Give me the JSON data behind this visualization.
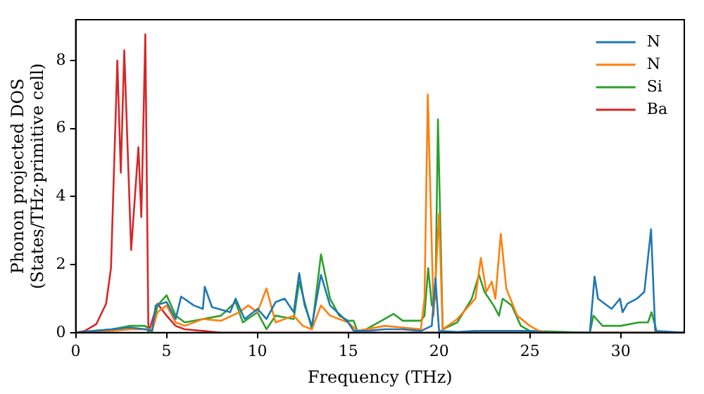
{
  "chart_data": {
    "type": "line",
    "xlabel": "Frequency (THz)",
    "ylabel": "Phonon projected DOS\n(States/THz·primitive cell)",
    "xlim": [
      0,
      33.5
    ],
    "xticks": [
      0,
      5,
      10,
      15,
      20,
      25,
      30
    ],
    "ylim": [
      0,
      9.2
    ],
    "yticks": [
      0,
      2,
      4,
      6,
      8
    ],
    "grid": false,
    "legend": "top right",
    "marker": "none",
    "line_style": "solid",
    "series": [
      {
        "name": "N",
        "color": "#1f77b4",
        "x": [
          0,
          1,
          2,
          3,
          3.8,
          4.2,
          4.4,
          5,
          5.5,
          5.8,
          6.5,
          7,
          7.1,
          7.5,
          8.5,
          8.8,
          9.3,
          10,
          10.5,
          11,
          11.5,
          12,
          12.3,
          12.6,
          13,
          13.5,
          14,
          15,
          15.3,
          16,
          17,
          18,
          19,
          19.6,
          19.8,
          20,
          21,
          22,
          25,
          26,
          28.3,
          28.56,
          28.75,
          29.5,
          29.96,
          30.1,
          30.37,
          30.9,
          31.3,
          31.67,
          31.9,
          33.5
        ],
        "values": [
          0,
          0.05,
          0.1,
          0.15,
          0.1,
          0.05,
          0.8,
          0.9,
          0.4,
          1.06,
          0.8,
          0.7,
          1.35,
          0.75,
          0.6,
          1,
          0.4,
          0.7,
          0.4,
          0.9,
          1,
          0.6,
          1.75,
          0.8,
          0.2,
          1.7,
          0.8,
          0.3,
          0.05,
          0.05,
          0.1,
          0.1,
          0.05,
          0.2,
          1.6,
          0.05,
          0.02,
          0.05,
          0.05,
          0,
          0,
          1.65,
          1,
          0.7,
          1,
          0.6,
          0.85,
          1,
          1.2,
          3.04,
          0.05,
          0
        ]
      },
      {
        "name": "N",
        "color": "#ff7f0e",
        "x": [
          0,
          2,
          3,
          4,
          4.2,
          4.5,
          5,
          5.5,
          6,
          7,
          8,
          9,
          9.5,
          10,
          10.5,
          11,
          12,
          12.5,
          13,
          13.5,
          14,
          15,
          15.5,
          17,
          19,
          19.2,
          19.38,
          19.7,
          20,
          20.2,
          21,
          22,
          22.3,
          22.6,
          22.9,
          23.1,
          23.4,
          23.7,
          24,
          24.3,
          25,
          25.5,
          26,
          33.5
        ],
        "values": [
          0,
          0.05,
          0.1,
          0.1,
          0.05,
          0.6,
          0.8,
          0.3,
          0.2,
          0.4,
          0.35,
          0.6,
          0.8,
          0.6,
          1.3,
          0.3,
          0.5,
          0.2,
          0.1,
          0.8,
          0.5,
          0.3,
          0.05,
          0.2,
          0.1,
          1,
          7,
          0.5,
          3.5,
          0.1,
          0.4,
          1,
          2.2,
          1.2,
          1.5,
          1,
          2.9,
          1.3,
          0.9,
          0.5,
          0.2,
          0.05,
          0,
          0
        ]
      },
      {
        "name": "Si",
        "color": "#2ca02c",
        "x": [
          0,
          1,
          2,
          3,
          3.8,
          4.2,
          4.5,
          5,
          5.5,
          6,
          7,
          8,
          8.8,
          9.2,
          10,
          10.5,
          11,
          12,
          12.3,
          12.6,
          13,
          13.5,
          14,
          14.5,
          15,
          15.3,
          15.5,
          16,
          17,
          17.5,
          18,
          19,
          19.2,
          19.4,
          19.6,
          19.8,
          19.94,
          20.2,
          21,
          21.8,
          22.2,
          22.5,
          23,
          23.3,
          23.5,
          24,
          24.5,
          25,
          28.3,
          28.5,
          29,
          30,
          31,
          31.5,
          31.7,
          32,
          33.5
        ],
        "values": [
          0,
          0.05,
          0.1,
          0.2,
          0.2,
          0.05,
          0.8,
          1.1,
          0.5,
          0.3,
          0.4,
          0.5,
          0.9,
          0.3,
          0.6,
          0.1,
          0.5,
          0.4,
          1.5,
          0.9,
          0.1,
          2.3,
          1,
          0.5,
          0.35,
          0.35,
          0.05,
          0.1,
          0.4,
          0.55,
          0.35,
          0.35,
          0.5,
          1.9,
          0.8,
          1,
          6.27,
          0.1,
          0.3,
          1,
          1.7,
          1.2,
          0.8,
          0.5,
          1,
          0.8,
          0.2,
          0.05,
          0,
          0.5,
          0.2,
          0.2,
          0.3,
          0.3,
          0.6,
          0,
          0
        ]
      },
      {
        "name": "Ba",
        "color": "#d62728",
        "x": [
          0,
          0.5,
          1.13,
          1.67,
          1.94,
          2.29,
          2.48,
          2.67,
          3.05,
          3.45,
          3.61,
          3.83,
          4,
          4.5,
          5,
          5.5,
          6,
          7,
          8,
          33.5
        ],
        "values": [
          0,
          0.05,
          0.25,
          0.85,
          1.9,
          8,
          4.7,
          8.3,
          2.43,
          5.45,
          3.4,
          8.77,
          0,
          0.85,
          0.5,
          0.2,
          0.1,
          0.05,
          0,
          0
        ]
      }
    ]
  }
}
